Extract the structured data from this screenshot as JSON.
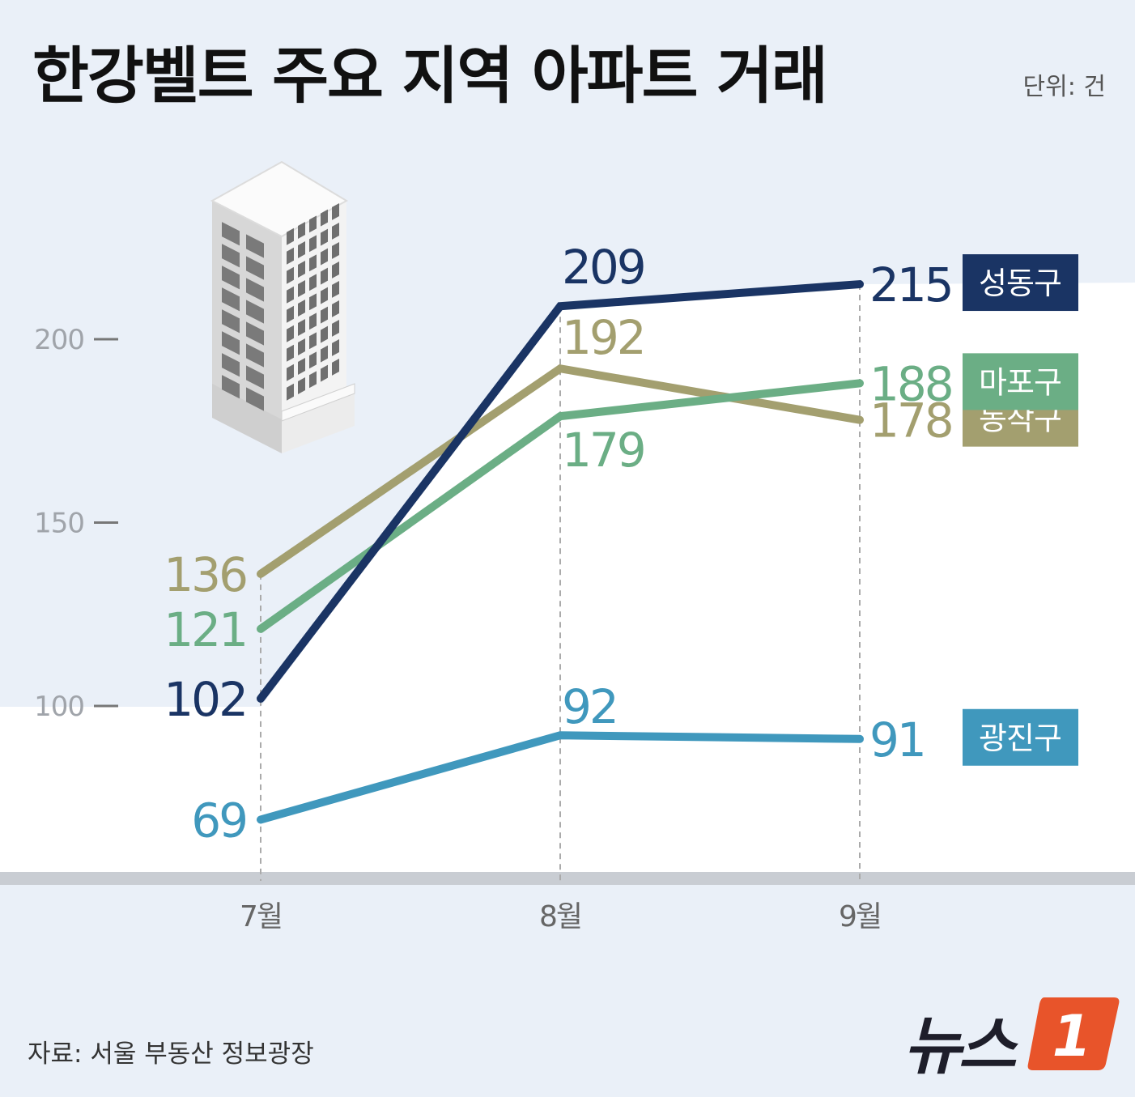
{
  "title": "한강벨트 주요 지역 아파트 거래",
  "unit": "단위: 건",
  "source": "자료: 서울 부동산 정보광장",
  "logo": {
    "text": "뉴스",
    "badge": "1"
  },
  "colors": {
    "background": "#eaf0f8",
    "plot_area": "#ffffff",
    "baseline": "#c9cdd3",
    "tick_label": "#a0a4aa",
    "month_label": "#666666",
    "logo_orange": "#e8542a"
  },
  "icons": [
    "building-icon"
  ],
  "chart_data": {
    "type": "line",
    "title": "한강벨트 주요 지역 아파트 거래",
    "xlabel": "",
    "ylabel": "",
    "categories": [
      "7월",
      "8월",
      "9월"
    ],
    "yticks": [
      100,
      150,
      200
    ],
    "ylim": [
      47,
      241
    ],
    "grid": false,
    "legend": "right",
    "series": [
      {
        "name": "동작구",
        "values": [
          136,
          192,
          178
        ],
        "color": "#a39f6f"
      },
      {
        "name": "마포구",
        "values": [
          121,
          179,
          188
        ],
        "color": "#6bae85"
      },
      {
        "name": "광진구",
        "values": [
          69,
          92,
          91
        ],
        "color": "#4098bd"
      },
      {
        "name": "성동구",
        "values": [
          102,
          209,
          215
        ],
        "color": "#1a3464"
      }
    ]
  }
}
